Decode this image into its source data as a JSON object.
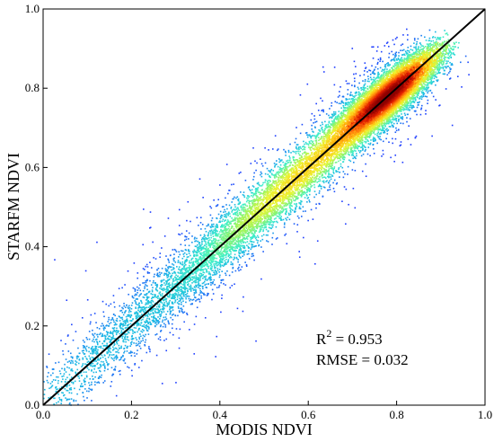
{
  "chart_data": {
    "type": "scatter",
    "title": "",
    "xlabel": "MODIS NDVI",
    "ylabel": "STARFM NDVI",
    "xlim": [
      0.0,
      1.0
    ],
    "ylim": [
      0.0,
      1.0
    ],
    "x_ticks": [
      "0.0",
      "0.2",
      "0.4",
      "0.6",
      "0.8",
      "1.0"
    ],
    "y_ticks": [
      "0.0",
      "0.2",
      "0.4",
      "0.6",
      "0.8",
      "1.0"
    ],
    "grid": false,
    "legend": "none",
    "reference_line": {
      "from": [
        0.0,
        0.0
      ],
      "to": [
        1.0,
        1.0
      ],
      "color": "#000000"
    },
    "density_colors": [
      "#1e3cff",
      "#18b4e6",
      "#3cf0c8",
      "#96f564",
      "#ebf532",
      "#ffc814",
      "#ff7a0a",
      "#e11e00",
      "#8c0000"
    ],
    "points_description": "Dense point cloud along the 1:1 line from about 0.02 to 0.9, densest near (0.75-0.85, 0.75-0.85)",
    "annotations": {
      "r_squared": {
        "label": "R",
        "superscript": "2",
        "value_text": " = 0.953"
      },
      "rmse": "RMSE = 0.032"
    }
  }
}
